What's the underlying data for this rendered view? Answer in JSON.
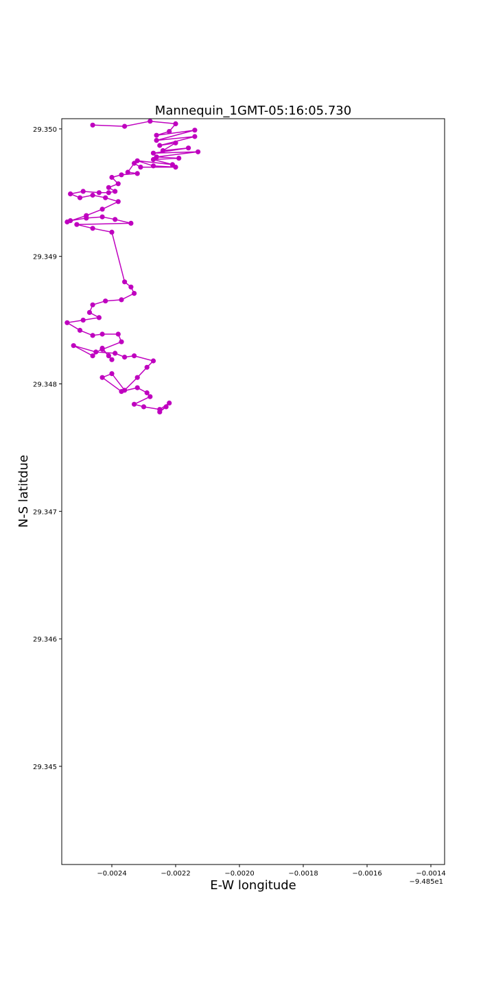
{
  "chart_data": {
    "type": "line",
    "title": "Mannequin_1GMT-05:16:05.730",
    "xlabel": "E-W longitude",
    "ylabel": "N-S latitdue",
    "x_offset_label": "−9.485e1",
    "x_tick_labels": [
      "−0.0024",
      "−0.0022",
      "−0.0020",
      "−0.0018",
      "−0.0016",
      "−0.0014"
    ],
    "x_ticks": [
      -0.0024,
      -0.0022,
      -0.002,
      -0.0018,
      -0.0016,
      -0.0014
    ],
    "y_tick_labels": [
      "29.345",
      "29.346",
      "29.347",
      "29.348",
      "29.349",
      "29.350"
    ],
    "y_ticks": [
      29.345,
      29.346,
      29.347,
      29.348,
      29.349,
      29.35
    ],
    "xlim": [
      -0.002557,
      -0.001357
    ],
    "ylim": [
      29.34423,
      29.35008
    ],
    "grid": false,
    "series": [
      {
        "color": "#bf00bf",
        "marker": "circle",
        "x": [
          -0.00246,
          -0.00236,
          -0.00228,
          -0.0022,
          -0.00222,
          -0.00226,
          -0.00214,
          -0.00226,
          -0.00214,
          -0.00225,
          -0.0022,
          -0.00224,
          -0.00216,
          -0.00227,
          -0.00213,
          -0.00226,
          -0.00219,
          -0.00227,
          -0.00221,
          -0.00232,
          -0.00227,
          -0.0022,
          -0.00231,
          -0.00233,
          -0.00235,
          -0.00232,
          -0.00237,
          -0.0024,
          -0.00238,
          -0.00241,
          -0.00239,
          -0.00241,
          -0.00244,
          -0.00249,
          -0.00253,
          -0.0025,
          -0.00246,
          -0.00242,
          -0.00238,
          -0.00243,
          -0.00248,
          -0.00254,
          -0.00253,
          -0.00248,
          -0.00243,
          -0.00239,
          -0.00234,
          -0.00251,
          -0.00246,
          -0.0024,
          -0.00236,
          -0.00234,
          -0.00233,
          -0.00237,
          -0.00242,
          -0.00246,
          -0.00247,
          -0.00244,
          -0.00249,
          -0.00254,
          -0.0025,
          -0.00246,
          -0.00243,
          -0.00238,
          -0.00237,
          -0.00243,
          -0.00241,
          -0.0024,
          -0.00243,
          -0.00246,
          -0.00252,
          -0.00245,
          -0.00239,
          -0.00236,
          -0.00233,
          -0.00227,
          -0.00229,
          -0.00232,
          -0.00236,
          -0.0024,
          -0.00243,
          -0.00237,
          -0.00232,
          -0.00229,
          -0.00228,
          -0.00233,
          -0.0023,
          -0.00225,
          -0.00222,
          -0.00225,
          -0.00223
        ],
        "y": [
          29.35003,
          29.35002,
          29.35006,
          29.35004,
          29.34998,
          29.34995,
          29.34999,
          29.34991,
          29.34994,
          29.34987,
          29.34989,
          29.34983,
          29.34985,
          29.34981,
          29.34982,
          29.34978,
          29.34977,
          29.34976,
          29.34972,
          29.34975,
          29.34971,
          29.3497,
          29.3497,
          29.34973,
          29.34966,
          29.34965,
          29.34964,
          29.34962,
          29.34957,
          29.34954,
          29.34951,
          29.3495,
          29.3495,
          29.34951,
          29.34949,
          29.34946,
          29.34948,
          29.34946,
          29.34943,
          29.34937,
          29.34932,
          29.34927,
          29.34928,
          29.3493,
          29.34931,
          29.34929,
          29.34926,
          29.34925,
          29.34922,
          29.34919,
          29.3488,
          29.34876,
          29.34871,
          29.34866,
          29.34865,
          29.34862,
          29.34856,
          29.34852,
          29.3485,
          29.34848,
          29.34842,
          29.34838,
          29.34839,
          29.34839,
          29.34833,
          29.34827,
          29.34822,
          29.34819,
          29.34828,
          29.34822,
          29.3483,
          29.34825,
          29.34824,
          29.34821,
          29.34822,
          29.34818,
          29.34813,
          29.34805,
          29.34795,
          29.34808,
          29.34805,
          29.34794,
          29.34797,
          29.34793,
          29.3479,
          29.34784,
          29.34782,
          29.3478,
          29.34785,
          29.34778,
          29.34782
        ]
      }
    ]
  }
}
